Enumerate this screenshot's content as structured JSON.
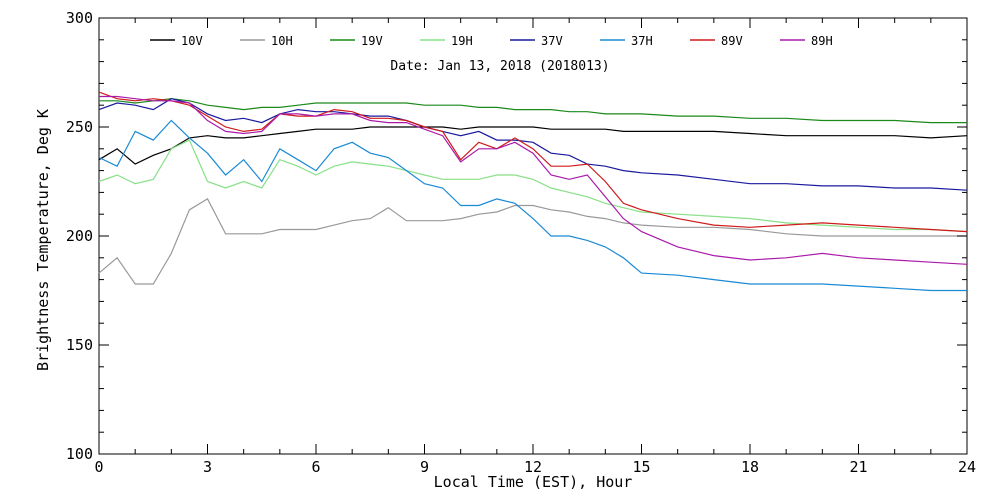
{
  "chart_data": {
    "type": "line",
    "title": "Date: Jan 13, 2018 (2018013)",
    "xlabel": "Local Time (EST), Hour",
    "ylabel": "Brightness Temperature, Deg K",
    "xlim": [
      0,
      24
    ],
    "ylim": [
      100,
      300
    ],
    "xticks": [
      0,
      3,
      6,
      9,
      12,
      15,
      18,
      21,
      24
    ],
    "yticks": [
      100,
      150,
      200,
      250,
      300
    ],
    "x": [
      0,
      0.5,
      1,
      1.5,
      2,
      2.5,
      3,
      3.5,
      4,
      4.5,
      5,
      5.5,
      6,
      6.5,
      7,
      7.5,
      8,
      8.5,
      9,
      9.5,
      10,
      10.5,
      11,
      11.5,
      12,
      12.5,
      13,
      13.5,
      14,
      14.5,
      15,
      16,
      17,
      18,
      19,
      20,
      21,
      22,
      23,
      24
    ],
    "legend": "top",
    "series": [
      {
        "name": "10V",
        "color": "#000000",
        "values": [
          235,
          240,
          233,
          237,
          240,
          245,
          246,
          245,
          245,
          246,
          247,
          248,
          249,
          249,
          249,
          250,
          250,
          250,
          250,
          250,
          249,
          250,
          250,
          250,
          250,
          249,
          249,
          249,
          249,
          248,
          248,
          248,
          248,
          247,
          246,
          246,
          246,
          246,
          245,
          246
        ]
      },
      {
        "name": "10H",
        "color": "#999999",
        "values": [
          183,
          190,
          178,
          178,
          192,
          212,
          217,
          201,
          201,
          201,
          203,
          203,
          203,
          205,
          207,
          208,
          213,
          207,
          207,
          207,
          208,
          210,
          211,
          214,
          214,
          212,
          211,
          209,
          208,
          206,
          205,
          204,
          204,
          203,
          201,
          200,
          200,
          200,
          200,
          200
        ]
      },
      {
        "name": "19V",
        "color": "#1a8a1a",
        "values": [
          262,
          262,
          261,
          262,
          263,
          262,
          260,
          259,
          258,
          259,
          259,
          260,
          261,
          261,
          261,
          261,
          261,
          261,
          260,
          260,
          260,
          259,
          259,
          258,
          258,
          258,
          257,
          257,
          256,
          256,
          256,
          255,
          255,
          254,
          254,
          253,
          253,
          253,
          252,
          252
        ]
      },
      {
        "name": "19H",
        "color": "#88e088",
        "values": [
          225,
          228,
          224,
          226,
          240,
          244,
          225,
          222,
          225,
          222,
          235,
          232,
          228,
          232,
          234,
          233,
          232,
          230,
          228,
          226,
          226,
          226,
          228,
          228,
          226,
          222,
          220,
          218,
          215,
          213,
          211,
          210,
          209,
          208,
          206,
          205,
          204,
          203,
          203,
          202
        ]
      },
      {
        "name": "37V",
        "color": "#1a1a9e",
        "values": [
          258,
          261,
          260,
          258,
          263,
          261,
          256,
          253,
          254,
          252,
          256,
          258,
          257,
          257,
          256,
          255,
          255,
          253,
          250,
          248,
          246,
          248,
          244,
          244,
          243,
          238,
          237,
          233,
          232,
          230,
          229,
          228,
          226,
          224,
          224,
          223,
          223,
          222,
          222,
          221
        ]
      },
      {
        "name": "37H",
        "color": "#1a8ad4",
        "values": [
          236,
          232,
          248,
          244,
          253,
          245,
          238,
          228,
          235,
          225,
          240,
          235,
          230,
          240,
          243,
          238,
          236,
          230,
          224,
          222,
          214,
          214,
          217,
          215,
          208,
          200,
          200,
          198,
          195,
          190,
          183,
          182,
          180,
          178,
          178,
          178,
          177,
          176,
          175,
          175
        ]
      },
      {
        "name": "89V",
        "color": "#d01a1a",
        "values": [
          266,
          263,
          262,
          263,
          262,
          260,
          255,
          250,
          248,
          249,
          256,
          255,
          255,
          258,
          257,
          254,
          254,
          253,
          250,
          248,
          235,
          243,
          240,
          245,
          240,
          232,
          232,
          233,
          225,
          215,
          212,
          208,
          205,
          204,
          205,
          206,
          205,
          204,
          203,
          202
        ]
      },
      {
        "name": "89H",
        "color": "#aa1aaa",
        "values": [
          264,
          264,
          263,
          262,
          262,
          261,
          253,
          248,
          247,
          248,
          256,
          256,
          255,
          256,
          256,
          253,
          252,
          252,
          249,
          246,
          234,
          240,
          240,
          243,
          238,
          228,
          226,
          228,
          218,
          208,
          202,
          195,
          191,
          189,
          190,
          192,
          190,
          189,
          188,
          187
        ]
      }
    ]
  }
}
